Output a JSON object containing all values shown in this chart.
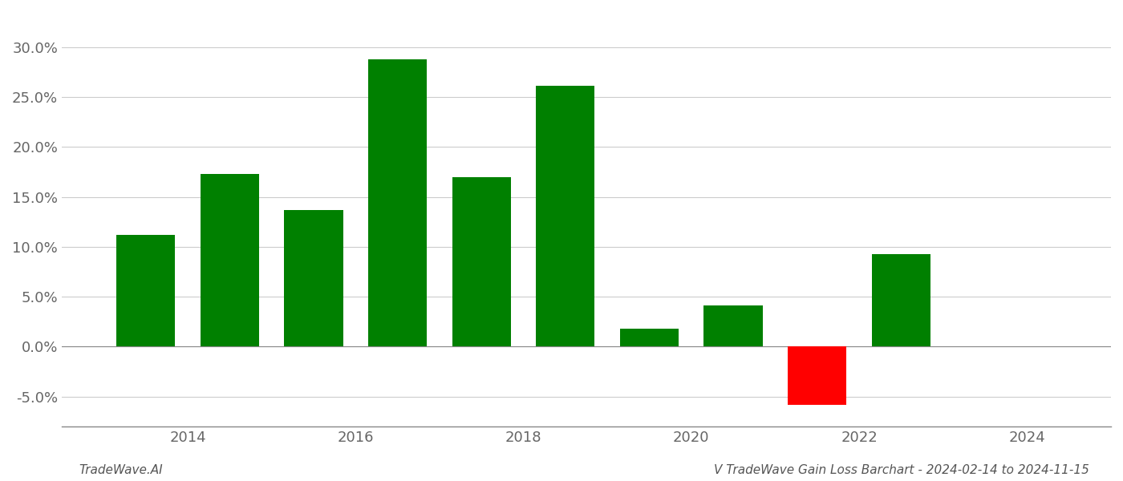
{
  "years": [
    2013.5,
    2014.5,
    2015.5,
    2016.5,
    2017.5,
    2018.5,
    2019.5,
    2020.5,
    2021.5,
    2022.5
  ],
  "values": [
    0.112,
    0.173,
    0.137,
    0.288,
    0.17,
    0.261,
    0.018,
    0.041,
    -0.058,
    0.093
  ],
  "bar_color_positive": "#008000",
  "bar_color_negative": "#ff0000",
  "ylim_min": -0.08,
  "ylim_max": 0.335,
  "yticks": [
    -0.05,
    0.0,
    0.05,
    0.1,
    0.15,
    0.2,
    0.25,
    0.3
  ],
  "xlim_min": 2012.5,
  "xlim_max": 2025.0,
  "xtick_years": [
    2014,
    2016,
    2018,
    2020,
    2022,
    2024
  ],
  "watermark_left": "TradeWave.AI",
  "watermark_right": "V TradeWave Gain Loss Barchart - 2024-02-14 to 2024-11-15",
  "background_color": "#ffffff",
  "grid_color": "#cccccc",
  "bar_width": 0.7,
  "tick_fontsize": 13,
  "watermark_fontsize": 11
}
